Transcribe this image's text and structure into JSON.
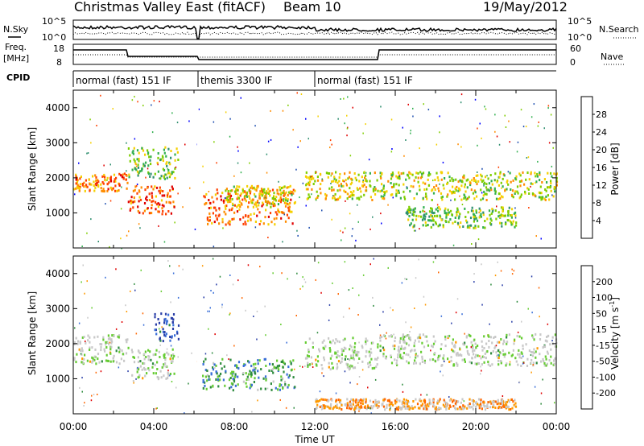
{
  "header": {
    "title": "Christmas Valley East (fitACF)",
    "beam": "Beam 10",
    "date": "19/May/2012"
  },
  "top_panels": {
    "nsky_label": "N.Sky",
    "nsearch_label": "N.Search",
    "nsky_ticks": [
      "10^5",
      "10^0"
    ],
    "nsearch_ticks": [
      "10^5",
      "10^0"
    ],
    "freq_label": "Freq.",
    "freq_unit": "[MHz]",
    "freq_ticks": [
      "18",
      "8"
    ],
    "nave_label": "Nave",
    "nave_ticks": [
      "60",
      "0"
    ],
    "cpid_label": "CPID"
  },
  "cpid_segments": [
    {
      "start": 0,
      "end": 6.2,
      "label": "normal (fast) 151 IF"
    },
    {
      "start": 6.2,
      "end": 12.0,
      "label": "themis 3300 IF"
    },
    {
      "start": 12.0,
      "end": 24.0,
      "label": "normal (fast) 151 IF"
    }
  ],
  "colors": {
    "power_scale": [
      "#0000ff",
      "#1f4fb0",
      "#2f8f6f",
      "#33b050",
      "#7fce00",
      "#f5d000",
      "#ff8c00",
      "#ff4000",
      "#e00000"
    ],
    "velocity_scale": [
      "#2a3fa8",
      "#3a6fd8",
      "#2e8b3e",
      "#66cc33",
      "#c8c8c8",
      "#c8c8c8",
      "#ff9900",
      "#ff6600",
      "#e00000"
    ]
  },
  "chart_data": [
    {
      "type": "heatmap",
      "name": "power",
      "xlabel": "",
      "ylabel": "Slant Range [km]",
      "xlim": [
        0,
        24
      ],
      "ylim": [
        0,
        4500
      ],
      "yticks": [
        1000,
        2000,
        3000,
        4000
      ],
      "colorbar_label": "Power [dB]",
      "colorbar_ticks": [
        "4",
        "8",
        "12",
        "16",
        "20",
        "24",
        "28"
      ],
      "bands": [
        {
          "t0": 0.0,
          "t1": 2.7,
          "r0": 1650,
          "r1": 2150,
          "level": 0.75
        },
        {
          "t0": 2.7,
          "t1": 5.0,
          "r0": 1000,
          "r1": 1800,
          "level": 0.8
        },
        {
          "t0": 2.7,
          "t1": 5.2,
          "r0": 2000,
          "r1": 2900,
          "level": 0.45
        },
        {
          "t0": 6.4,
          "t1": 11.0,
          "r0": 700,
          "r1": 1700,
          "level": 0.75
        },
        {
          "t0": 7.5,
          "t1": 11.0,
          "r0": 1200,
          "r1": 1800,
          "level": 0.6
        },
        {
          "t0": 11.5,
          "t1": 15.1,
          "r0": 1400,
          "r1": 2200,
          "level": 0.6
        },
        {
          "t0": 15.2,
          "t1": 24.0,
          "r0": 1400,
          "r1": 2200,
          "level": 0.55
        },
        {
          "t0": 16.5,
          "t1": 22.0,
          "r0": 600,
          "r1": 1200,
          "level": 0.45
        }
      ]
    },
    {
      "type": "heatmap",
      "name": "velocity",
      "xlabel": "Time UT",
      "ylabel": "Slant Range [km]",
      "xlim": [
        0,
        24
      ],
      "ylim": [
        0,
        4500
      ],
      "yticks": [
        1000,
        2000,
        3000,
        4000
      ],
      "xticks": [
        "00:00",
        "04:00",
        "08:00",
        "12:00",
        "16:00",
        "20:00",
        "00:00"
      ],
      "colorbar_label": "Velocity [m s",
      "colorbar_unit_exp": "-1",
      "colorbar_unit_end": "]",
      "colorbar_ticks": [
        "200",
        "100",
        "50",
        "15",
        "-15",
        "-50",
        "-100",
        "-200"
      ],
      "bands": [
        {
          "t0": 0.0,
          "t1": 2.7,
          "r0": 1450,
          "r1": 2300,
          "level": 0.5
        },
        {
          "t0": 2.7,
          "t1": 5.0,
          "r0": 1000,
          "r1": 1900,
          "level": 0.5
        },
        {
          "t0": 4.0,
          "t1": 5.2,
          "r0": 2100,
          "r1": 2900,
          "level": 0.1
        },
        {
          "t0": 6.4,
          "t1": 11.0,
          "r0": 700,
          "r1": 1600,
          "level": 0.3
        },
        {
          "t0": 11.5,
          "t1": 15.1,
          "r0": 1300,
          "r1": 2200,
          "level": 0.5
        },
        {
          "t0": 15.2,
          "t1": 24.0,
          "r0": 1400,
          "r1": 2300,
          "level": 0.5
        },
        {
          "t0": 12.0,
          "t1": 22.0,
          "r0": 150,
          "r1": 450,
          "level": 0.7
        }
      ]
    }
  ]
}
